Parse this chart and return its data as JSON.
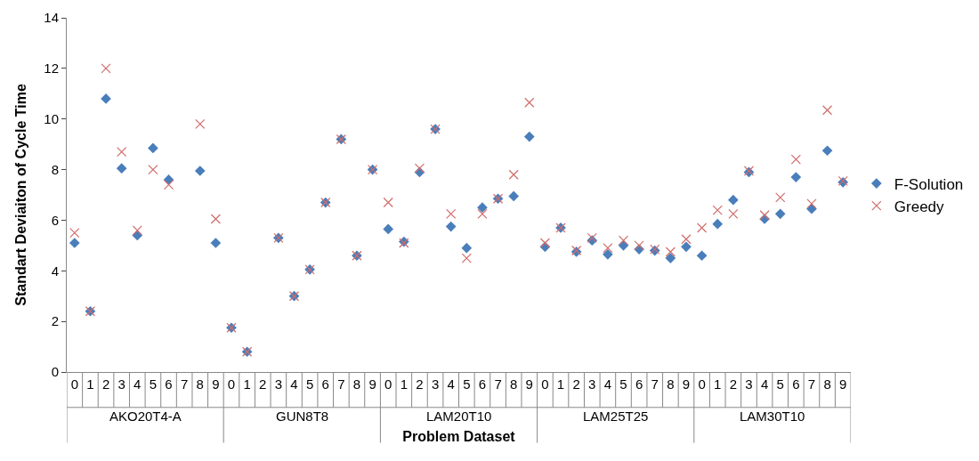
{
  "chart_data": {
    "type": "scatter",
    "xlabel": "Problem Dataset",
    "ylabel": "Standart Deviaiton of Cycle Time",
    "categories": [
      "0",
      "1",
      "2",
      "3",
      "4",
      "5",
      "6",
      "7",
      "8",
      "9",
      "0",
      "1",
      "2",
      "3",
      "4",
      "5",
      "6",
      "7",
      "8",
      "9",
      "0",
      "1",
      "2",
      "3",
      "4",
      "5",
      "6",
      "7",
      "8",
      "9",
      "0",
      "1",
      "2",
      "3",
      "4",
      "5",
      "6",
      "7",
      "8",
      "9",
      "0",
      "1",
      "2",
      "3",
      "4",
      "5",
      "6",
      "7",
      "8",
      "9"
    ],
    "annotations": [
      "AKO20T4-A",
      "GUN8T8",
      "LAM20T10",
      "LAM25T25",
      "LAM30T10"
    ],
    "series": [
      {
        "name": "F-Solution",
        "color": "#4a7ebb",
        "marker": "diamond",
        "values": [
          5.1,
          2.4,
          10.8,
          8.05,
          5.4,
          8.85,
          7.6,
          null,
          7.95,
          5.1,
          1.75,
          0.8,
          null,
          5.3,
          3.0,
          4.05,
          6.7,
          9.2,
          4.6,
          8.0,
          5.65,
          5.15,
          7.9,
          9.6,
          5.75,
          4.9,
          6.5,
          6.85,
          6.95,
          9.3,
          4.95,
          5.7,
          4.75,
          5.2,
          4.65,
          5.0,
          4.85,
          4.8,
          4.5,
          4.95,
          4.6,
          5.85,
          6.8,
          7.9,
          6.05,
          6.25,
          7.7,
          6.45,
          8.75,
          7.5
        ]
      },
      {
        "name": "Greedy",
        "color": "#d06c6a",
        "marker": "cross",
        "values": [
          5.5,
          2.4,
          12.0,
          8.7,
          5.6,
          8.0,
          7.4,
          null,
          9.8,
          6.05,
          1.75,
          0.8,
          null,
          5.3,
          3.0,
          4.05,
          6.7,
          9.2,
          4.6,
          8.0,
          6.7,
          5.1,
          8.05,
          9.6,
          6.25,
          4.5,
          6.25,
          6.85,
          7.8,
          10.65,
          5.1,
          5.7,
          4.8,
          5.3,
          4.9,
          5.2,
          5.0,
          4.85,
          4.75,
          5.25,
          5.7,
          6.4,
          6.25,
          7.95,
          6.2,
          6.9,
          8.4,
          6.65,
          10.35,
          7.55
        ]
      }
    ],
    "ylim": [
      0,
      14
    ],
    "yticks": [
      0,
      2,
      4,
      6,
      8,
      10,
      12,
      14
    ],
    "grid": false,
    "legend": "right"
  }
}
